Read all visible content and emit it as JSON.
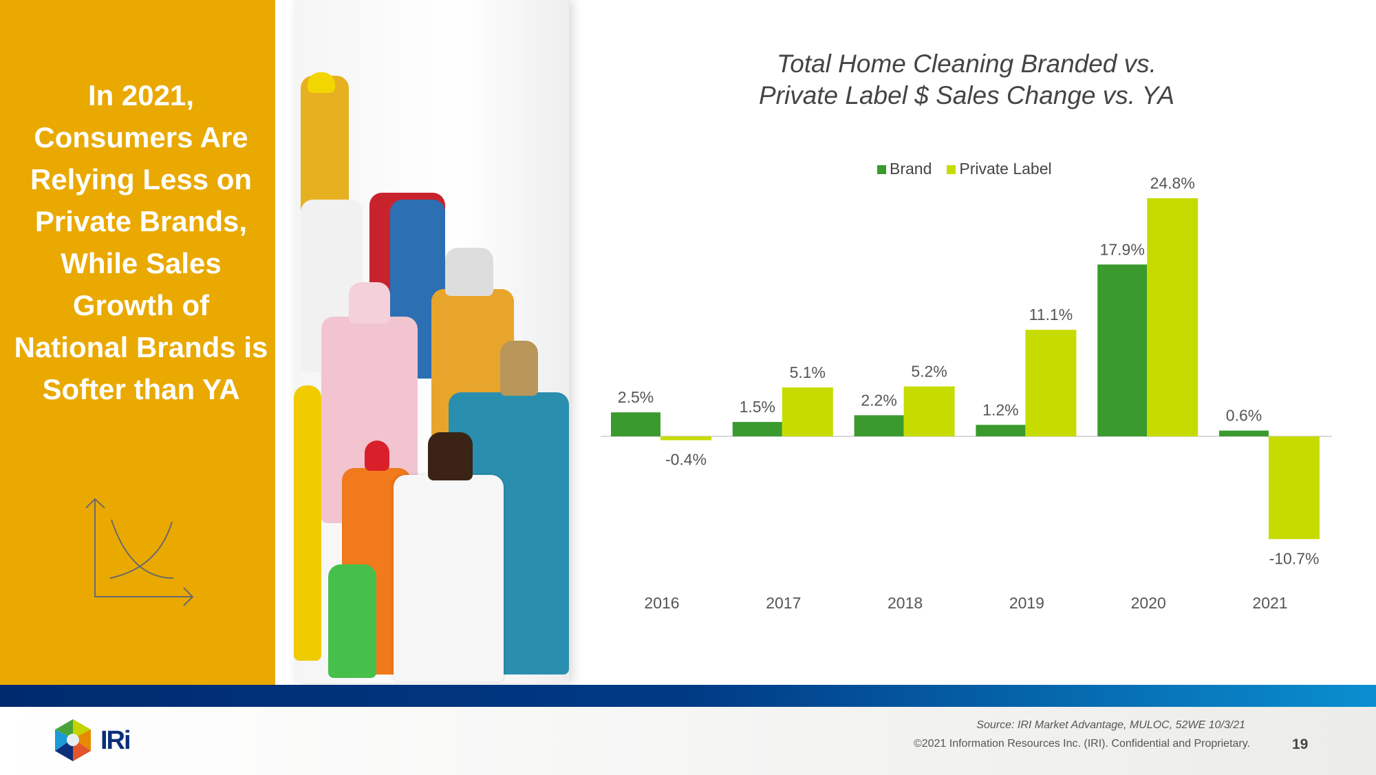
{
  "headline": "In 2021, Consumers Are Relying Less on Private Brands, While Sales Growth of National Brands is Softer than YA",
  "logo_text": "IRi",
  "footer": {
    "source": "Source: IRI Market Advantage, MULOC, 52WE 10/3/21",
    "copyright": "©2021 Information Resources Inc. (IRI). Confidential and Proprietary.",
    "page": "19"
  },
  "colors": {
    "brand": "#3a9a2e",
    "private_label": "#c6dc00",
    "panel": "#e9a900"
  },
  "chart_data": {
    "type": "bar",
    "title": "Total Home Cleaning Branded vs. Private Label $ Sales Change vs. YA",
    "title_lines": [
      "Total Home Cleaning Branded vs.",
      "Private Label $ Sales Change vs. YA"
    ],
    "categories": [
      "2016",
      "2017",
      "2018",
      "2019",
      "2020",
      "2021"
    ],
    "series": [
      {
        "name": "Brand",
        "values": [
          2.5,
          1.5,
          2.2,
          1.2,
          17.9,
          0.6
        ],
        "labels": [
          "2.5%",
          "1.5%",
          "2.2%",
          "1.2%",
          "17.9%",
          "0.6%"
        ]
      },
      {
        "name": "Private Label",
        "values": [
          -0.4,
          5.1,
          5.2,
          11.1,
          24.8,
          -10.7
        ],
        "labels": [
          "-0.4%",
          "5.1%",
          "5.2%",
          "11.1%",
          "24.8%",
          "-10.7%"
        ]
      }
    ],
    "legend": "top-center",
    "grid": false,
    "xlabel": "",
    "ylabel": ""
  }
}
